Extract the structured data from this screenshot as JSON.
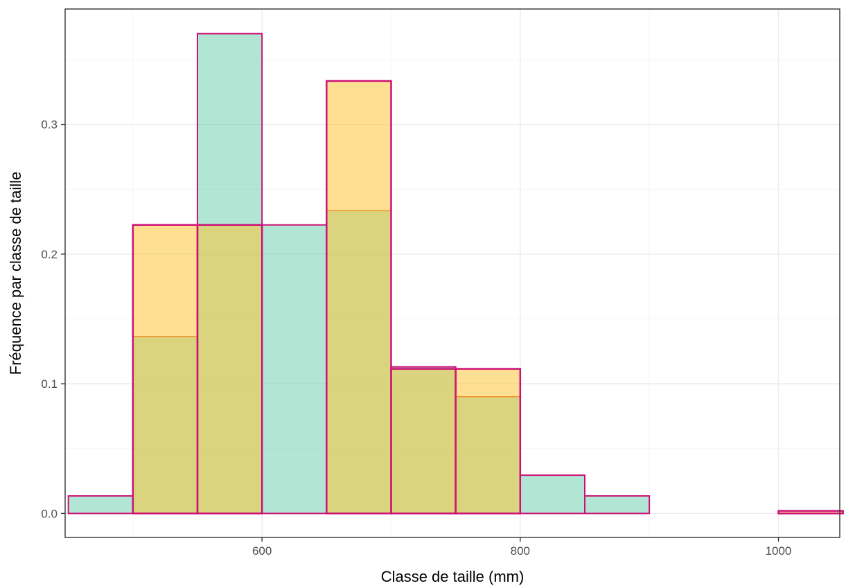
{
  "chart_data": {
    "type": "bar",
    "title": "",
    "xlabel": "Classe de taille (mm)",
    "ylabel": "Fréquence par classe de taille",
    "xlim": [
      447.5,
      1047.5
    ],
    "ylim": [
      -0.0185,
      0.389
    ],
    "x_ticks": [
      600,
      800,
      1000
    ],
    "x_tick_labels": [
      "600",
      "800",
      "1000"
    ],
    "y_ticks": [
      0.0,
      0.1,
      0.2,
      0.3
    ],
    "y_tick_labels": [
      "0.0",
      "0.1",
      "0.2",
      "0.3"
    ],
    "x_minor_ticks": [
      500,
      700,
      900
    ],
    "y_minor_ticks": [
      0.05,
      0.15,
      0.25,
      0.35
    ],
    "grid": true,
    "legend": "none",
    "bin_width": 50,
    "series": [
      {
        "bin_centers": [
          475,
          525,
          575,
          625,
          675,
          725,
          775,
          825,
          875,
          925,
          975,
          1025
        ],
        "values": [
          0.0135,
          0.1365,
          0.37,
          0.2225,
          0.2335,
          0.113,
          0.09,
          0.0295,
          0.0135,
          0.0,
          0.0,
          0.0
        ],
        "fill": "#66cdaa",
        "fill_opacity": 0.5,
        "stroke": "#cd1076",
        "stroke_mode": "no-overlap"
      },
      {
        "bin_centers": [
          525,
          575,
          625,
          675,
          725,
          775,
          825,
          875,
          925,
          975,
          1025
        ],
        "values": [
          0.2225,
          0.2225,
          0.0,
          0.3335,
          0.1115,
          0.1115,
          0.0,
          0.0,
          0.0,
          0.0,
          0.002
        ],
        "fill": "#ffc125",
        "fill_opacity": 0.5,
        "stroke": "#cd1076",
        "stroke_mode": "full"
      }
    ]
  },
  "colors": {
    "panel_border": "#333333",
    "grid_major": "#ebebeb",
    "grid_minor": "#f5f5f5",
    "overlap_line": "#e5693b"
  }
}
